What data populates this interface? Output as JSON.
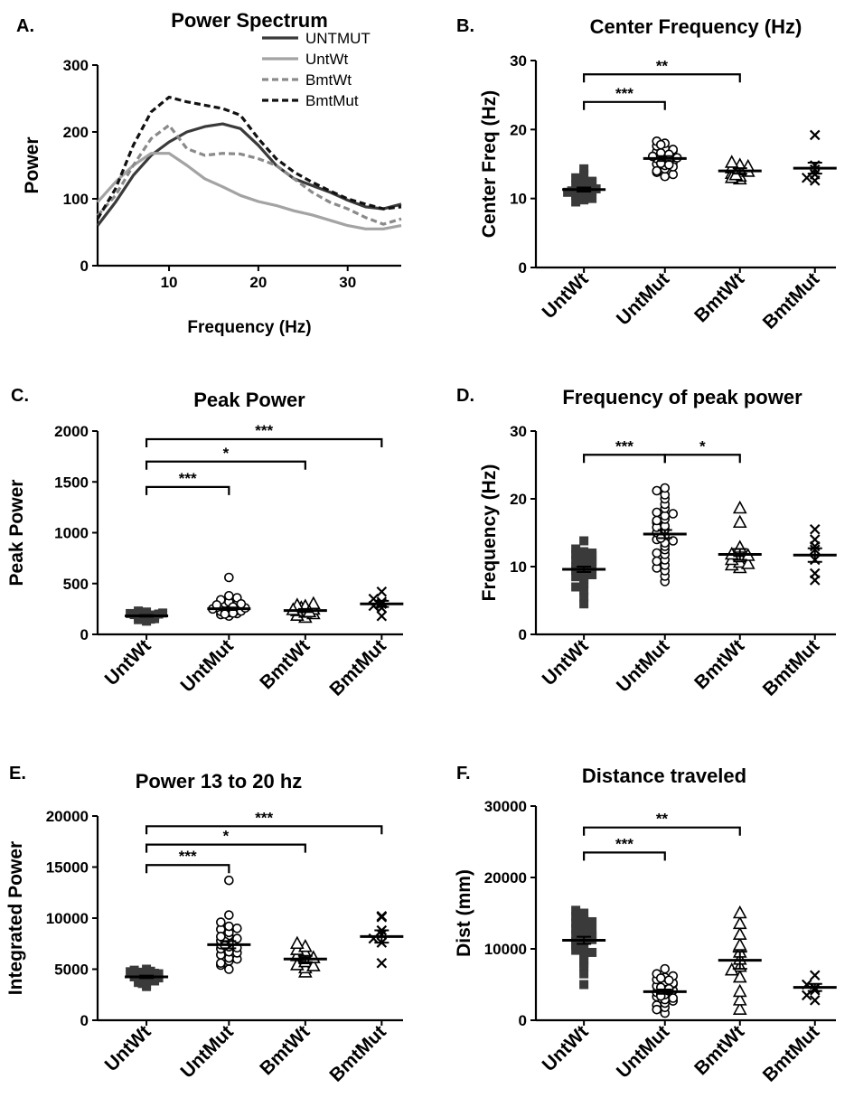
{
  "colors": {
    "untmut": "#3a3a3a",
    "untwt": "#a3a3a3",
    "bmtwt": "#8a8a8a",
    "bmtmut": "#111111",
    "axis": "#000000"
  },
  "chart_data": [
    {
      "id": "A",
      "panel_label": "A.",
      "type": "line",
      "title": "Power Spectrum",
      "xlabel": "Frequency (Hz)",
      "ylabel": "Power",
      "xlim": [
        2,
        36
      ],
      "ylim": [
        0,
        300
      ],
      "xticks": [
        10,
        20,
        30
      ],
      "yticks": [
        0,
        100,
        200,
        300
      ],
      "grid": false,
      "legend_position": "top-right",
      "series": [
        {
          "name": "UNTMUT",
          "style": "solid",
          "color": "#3a3a3a",
          "x": [
            2,
            4,
            6,
            8,
            10,
            12,
            14,
            16,
            18,
            20,
            22,
            24,
            26,
            28,
            30,
            32,
            34,
            36
          ],
          "y": [
            60,
            95,
            135,
            165,
            185,
            200,
            208,
            212,
            205,
            180,
            150,
            130,
            120,
            110,
            98,
            88,
            85,
            92
          ]
        },
        {
          "name": "UntWt",
          "style": "solid",
          "color": "#a3a3a3",
          "x": [
            2,
            4,
            6,
            8,
            10,
            12,
            14,
            16,
            18,
            20,
            22,
            24,
            26,
            28,
            30,
            32,
            34,
            36
          ],
          "y": [
            95,
            125,
            150,
            168,
            168,
            150,
            130,
            118,
            105,
            96,
            90,
            82,
            76,
            68,
            60,
            55,
            55,
            60
          ]
        },
        {
          "name": "BmtWt",
          "style": "dashed",
          "color": "#8a8a8a",
          "x": [
            2,
            4,
            6,
            8,
            10,
            12,
            14,
            16,
            18,
            20,
            22,
            24,
            26,
            28,
            30,
            32,
            34,
            36
          ],
          "y": [
            75,
            105,
            150,
            190,
            210,
            175,
            165,
            168,
            167,
            160,
            150,
            130,
            110,
            95,
            85,
            72,
            62,
            70
          ]
        },
        {
          "name": "BmtMut",
          "style": "dashed",
          "color": "#111111",
          "x": [
            2,
            4,
            6,
            8,
            10,
            12,
            14,
            16,
            18,
            20,
            22,
            24,
            26,
            28,
            30,
            32,
            34,
            36
          ],
          "y": [
            70,
            115,
            180,
            230,
            252,
            245,
            240,
            235,
            225,
            190,
            160,
            140,
            125,
            112,
            100,
            92,
            85,
            88
          ]
        }
      ]
    },
    {
      "id": "B",
      "panel_label": "B.",
      "type": "scatter",
      "title": "Center Frequency (Hz)",
      "ylabel": "Center Freq (Hz)",
      "ylim": [
        0,
        30
      ],
      "yticks": [
        0,
        10,
        20,
        30
      ],
      "categories": [
        "UntWt",
        "UntMut",
        "BmtWt",
        "BmtMut"
      ],
      "markers": [
        "square",
        "circle",
        "triangle",
        "x"
      ],
      "means": [
        11.3,
        15.8,
        14.0,
        14.4
      ],
      "sems": [
        0.3,
        0.35,
        0.4,
        0.8
      ],
      "points": [
        [
          9.8,
          10.2,
          10.5,
          10.8,
          11.0,
          11.2,
          11.3,
          11.5,
          11.7,
          12.0,
          12.3,
          12.6,
          13.0,
          13.5,
          14.3,
          9.5,
          10.0,
          11.8,
          12.5,
          10.6,
          11.1,
          11.4,
          12.1,
          10.9
        ],
        [
          13.2,
          13.8,
          14.3,
          14.8,
          15.0,
          15.3,
          15.6,
          15.8,
          16.0,
          16.2,
          16.5,
          16.8,
          17.0,
          17.3,
          17.6,
          18.0,
          18.3,
          13.5,
          14.0,
          14.6,
          15.1,
          15.5,
          16.1,
          16.6,
          17.1,
          17.8,
          16.4,
          15.9,
          14.9
        ],
        [
          12.8,
          13.2,
          13.6,
          13.9,
          14.1,
          14.4,
          14.8,
          15.2,
          13.0,
          14.6,
          13.4
        ],
        [
          12.6,
          13.5,
          14.2,
          14.8,
          19.2,
          13.0
        ]
      ],
      "comparisons": [
        {
          "from": 0,
          "to": 1,
          "label": "***",
          "y": 24.0
        },
        {
          "from": 0,
          "to": 2,
          "label": "**",
          "y": 28.0
        }
      ]
    },
    {
      "id": "C",
      "panel_label": "C.",
      "type": "scatter",
      "title": "Peak Power",
      "ylabel": "Peak Power",
      "ylim": [
        0,
        2000
      ],
      "yticks": [
        0,
        500,
        1000,
        1500,
        2000
      ],
      "categories": [
        "UntWt",
        "UntMut",
        "BmtWt",
        "BmtMut"
      ],
      "markers": [
        "square",
        "circle",
        "triangle",
        "x"
      ],
      "means": [
        182,
        252,
        235,
        300
      ],
      "sems": [
        8,
        12,
        15,
        30
      ],
      "points": [
        [
          130,
          145,
          155,
          160,
          170,
          175,
          180,
          185,
          190,
          195,
          200,
          205,
          210,
          220,
          230,
          150,
          165,
          178,
          188,
          198
        ],
        [
          180,
          195,
          205,
          215,
          225,
          235,
          245,
          255,
          265,
          275,
          285,
          295,
          305,
          320,
          340,
          360,
          380,
          560,
          200,
          230,
          250,
          270,
          290,
          210,
          260,
          300
        ],
        [
          165,
          185,
          200,
          215,
          230,
          245,
          260,
          275,
          285,
          300,
          220,
          240
        ],
        [
          180,
          260,
          300,
          320,
          350,
          420,
          280
        ]
      ],
      "comparisons": [
        {
          "from": 0,
          "to": 1,
          "label": "***",
          "y": 1450
        },
        {
          "from": 0,
          "to": 2,
          "label": "*",
          "y": 1700
        },
        {
          "from": 0,
          "to": 3,
          "label": "***",
          "y": 1920
        }
      ]
    },
    {
      "id": "D",
      "panel_label": "D.",
      "type": "scatter",
      "title": "Frequency of peak power",
      "ylabel": "Frequency (Hz)",
      "ylim": [
        0,
        30
      ],
      "yticks": [
        0,
        10,
        20,
        30
      ],
      "categories": [
        "UntWt",
        "UntMut",
        "BmtWt",
        "BmtMut"
      ],
      "markers": [
        "square",
        "circle",
        "triangle",
        "x"
      ],
      "means": [
        9.6,
        14.8,
        11.8,
        11.7
      ],
      "sems": [
        0.4,
        0.6,
        0.8,
        1.0
      ],
      "points": [
        [
          4.5,
          5.5,
          6.5,
          7.5,
          8.0,
          8.5,
          9.0,
          9.5,
          9.8,
          10.0,
          10.3,
          10.6,
          11.0,
          11.4,
          11.8,
          12.2,
          12.6,
          13.8,
          8.8,
          9.2,
          10.8,
          11.6,
          7.0,
          12.0
        ],
        [
          7.8,
          8.6,
          9.4,
          10.2,
          11.0,
          11.8,
          12.5,
          13.0,
          13.5,
          14.0,
          14.6,
          15.0,
          15.5,
          16.0,
          16.5,
          17.0,
          17.5,
          18.0,
          18.6,
          19.2,
          20.0,
          20.6,
          21.2,
          21.6,
          12.0,
          13.8,
          15.8,
          16.8,
          14.2,
          17.8,
          9.8,
          10.8
        ],
        [
          9.8,
          10.2,
          10.6,
          11.0,
          11.4,
          11.8,
          12.2,
          12.8,
          16.5,
          18.6,
          10.4,
          11.6
        ],
        [
          8.0,
          9.0,
          11.0,
          12.5,
          13.0,
          14.0,
          15.5
        ]
      ],
      "comparisons": [
        {
          "from": 0,
          "to": 1,
          "label": "***",
          "y": 26.5
        },
        {
          "from": 1,
          "to": 2,
          "label": "*",
          "y": 26.5
        }
      ]
    },
    {
      "id": "E",
      "panel_label": "E.",
      "type": "scatter",
      "title": "Power 13 to 20 hz",
      "ylabel": "Integrated Power",
      "ylim": [
        0,
        20000
      ],
      "yticks": [
        0,
        5000,
        10000,
        15000,
        20000
      ],
      "categories": [
        "UntWt",
        "UntMut",
        "BmtWt",
        "BmtMut"
      ],
      "markers": [
        "square",
        "circle",
        "triangle",
        "x"
      ],
      "means": [
        4250,
        7400,
        6000,
        8200
      ],
      "sems": [
        120,
        350,
        300,
        600
      ],
      "points": [
        [
          3300,
          3500,
          3700,
          3850,
          4000,
          4100,
          4200,
          4300,
          4400,
          4500,
          4600,
          4700,
          4800,
          4900,
          5000,
          3600,
          3950,
          4250,
          4550,
          4750,
          4150
        ],
        [
          5000,
          5400,
          5800,
          6100,
          6400,
          6700,
          7000,
          7200,
          7400,
          7600,
          7800,
          8000,
          8300,
          8600,
          8900,
          9200,
          9600,
          10300,
          13700,
          6000,
          6600,
          7100,
          7700,
          8200,
          5600,
          9000,
          7300
        ],
        [
          4700,
          5100,
          5400,
          5700,
          6000,
          6300,
          6600,
          6900,
          7200,
          7500,
          5300,
          6100
        ],
        [
          5600,
          7600,
          8000,
          8400,
          10100,
          10200,
          8800
        ]
      ],
      "comparisons": [
        {
          "from": 0,
          "to": 1,
          "label": "***",
          "y": 15200
        },
        {
          "from": 0,
          "to": 2,
          "label": "*",
          "y": 17200
        },
        {
          "from": 0,
          "to": 3,
          "label": "***",
          "y": 19000
        }
      ]
    },
    {
      "id": "F",
      "panel_label": "F.",
      "type": "scatter",
      "title": "Distance traveled",
      "ylabel": "Dist (mm)",
      "ylim": [
        0,
        30000
      ],
      "yticks": [
        0,
        10000,
        20000,
        30000
      ],
      "categories": [
        "UntWt",
        "UntMut",
        "BmtWt",
        "BmtMut"
      ],
      "markers": [
        "square",
        "circle",
        "triangle",
        "x"
      ],
      "means": [
        11200,
        4000,
        8400,
        4600
      ],
      "sems": [
        500,
        300,
        1200,
        500
      ],
      "points": [
        [
          5000,
          6500,
          7500,
          8500,
          9200,
          9800,
          10300,
          10700,
          11000,
          11300,
          11600,
          12000,
          12400,
          12800,
          13200,
          13600,
          14000,
          14500,
          15000,
          15400,
          9500,
          10500,
          11800,
          12600,
          13800,
          8000
        ],
        [
          1000,
          1800,
          2400,
          2900,
          3300,
          3600,
          3900,
          4200,
          4500,
          4800,
          5100,
          5400,
          5700,
          6000,
          6500,
          7200,
          2100,
          2700,
          3100,
          3700,
          4100,
          4600,
          5200,
          5900,
          3400,
          4400,
          6200,
          1500,
          5600
        ],
        [
          1500,
          2800,
          4000,
          6000,
          7500,
          8500,
          9500,
          10500,
          12000,
          13500,
          15000,
          7000
        ],
        [
          2800,
          3500,
          4500,
          5000,
          6300,
          4200
        ]
      ],
      "comparisons": [
        {
          "from": 0,
          "to": 1,
          "label": "***",
          "y": 23500
        },
        {
          "from": 0,
          "to": 2,
          "label": "**",
          "y": 27000
        }
      ]
    }
  ]
}
